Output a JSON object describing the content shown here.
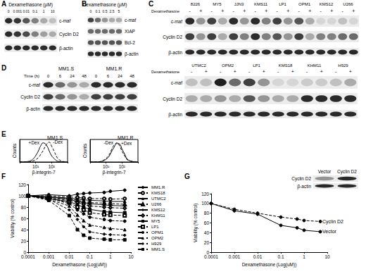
{
  "blots": {
    "A": {
      "panel_label": "A",
      "header": "Dexamethasone (μM)",
      "lanes": [
        "0",
        "0.001",
        "0.01",
        "0.1",
        "1",
        "10"
      ],
      "rows": [
        {
          "label": "c-maf",
          "bands": [
            0.9,
            0.85,
            0.7,
            0.5,
            0.3,
            0.2
          ]
        },
        {
          "label": "Cyclin D2",
          "bands": [
            0.9,
            0.85,
            0.75,
            0.5,
            0.35,
            0.3
          ]
        },
        {
          "label": "β-actin",
          "bands": [
            0.9,
            0.9,
            0.9,
            0.9,
            0.9,
            0.9
          ]
        }
      ]
    },
    "B": {
      "panel_label": "B",
      "header": "Dexamethasone (μM)",
      "lanes": [
        "0",
        "0.1",
        "0.5",
        "2.5",
        "5"
      ],
      "rows": [
        {
          "label": "c-maf",
          "bands": [
            0.8,
            0.6,
            0.4,
            0.3,
            0.3
          ]
        },
        {
          "label": "XIAP",
          "bands": [
            0.6,
            0.6,
            0.6,
            0.6,
            0.6
          ]
        },
        {
          "label": "Bcl-2",
          "bands": [
            0.7,
            0.7,
            0.7,
            0.7,
            0.7
          ]
        },
        {
          "label": "β-actin",
          "bands": [
            0.9,
            0.9,
            0.9,
            0.9,
            0.9
          ]
        }
      ]
    },
    "C": {
      "panel_label": "C",
      "treatment": "Dexamethasone",
      "signs": [
        "-",
        "+"
      ],
      "blocks": [
        {
          "lines": [
            "8226",
            "MY5",
            "JJN3",
            "KMS11",
            "LP1",
            "OPM1",
            "KMS12",
            "U266"
          ],
          "rows": [
            {
              "label": "c-maf",
              "bands": [
                0.9,
                0.4,
                0.8,
                0.3,
                0.9,
                0.4,
                0.9,
                0.5,
                0.8,
                0.4,
                0.7,
                0.3,
                0.1,
                0.1,
                0.2,
                0.1
              ]
            },
            {
              "label": "Cyclin D2",
              "bands": [
                0.8,
                0.4,
                0.8,
                0.3,
                0.8,
                0.5,
                0.9,
                0.5,
                0.7,
                0.4,
                0.8,
                0.3,
                0.5,
                0.5,
                0.6,
                0.6
              ]
            },
            {
              "label": "β-actin",
              "bands": [
                0.9,
                0.9,
                0.9,
                0.9,
                0.9,
                0.9,
                0.9,
                0.9,
                0.9,
                0.9,
                0.9,
                0.9,
                0.9,
                0.9,
                0.9,
                0.9
              ]
            }
          ]
        },
        {
          "lines": [
            "UTMC2",
            "OPM2",
            "LP1",
            "KMS18",
            "KHM11",
            "H929"
          ],
          "rows": [
            {
              "label": "c-maf",
              "bands": [
                0.2,
                0.2,
                0.95,
                0.6,
                0.8,
                0.4,
                0.1,
                0.1,
                0.15,
                0.15,
                0.2,
                0.3
              ]
            },
            {
              "label": "Cyclin D2",
              "bands": [
                0.3,
                0.3,
                0.4,
                0.3,
                0.7,
                0.4,
                0.3,
                0.3,
                0.9,
                0.9,
                0.9,
                0.9
              ]
            },
            {
              "label": "β-actin",
              "bands": [
                0.9,
                0.9,
                0.9,
                0.9,
                0.9,
                0.9,
                0.9,
                0.9,
                0.9,
                0.9,
                0.9,
                0.9
              ]
            }
          ]
        }
      ]
    },
    "D": {
      "panel_label": "D",
      "header": "Time (h)",
      "groups": [
        "MM1.S",
        "MM1.R"
      ],
      "lanes": [
        "0",
        "6",
        "24",
        "48"
      ],
      "rows": [
        {
          "label": "c-maf",
          "bands": [
            0.9,
            0.6,
            0.4,
            0.3,
            0.9,
            0.9,
            0.9,
            0.9
          ]
        },
        {
          "label": "Cyclin D2",
          "bands": [
            0.8,
            0.6,
            0.4,
            0.3,
            0.8,
            0.8,
            0.8,
            0.8
          ]
        },
        {
          "label": "β-actin",
          "bands": [
            0.9,
            0.9,
            0.9,
            0.9,
            0.9,
            0.9,
            0.9,
            0.9
          ]
        }
      ]
    },
    "G_inset": {
      "lanes": [
        "Vector",
        "Cyclin D2"
      ],
      "rows": [
        {
          "label": "Cyclin D2",
          "bands": [
            0.4,
            0.9
          ]
        },
        {
          "label": "β-actin",
          "bands": [
            0.9,
            0.9
          ]
        }
      ]
    }
  },
  "chart_data": [
    {
      "type": "line",
      "panel_label": "E",
      "title": "MM1.S",
      "xlabel": "β-integrin-7",
      "ylabel": "Counts",
      "log": "x",
      "xlim": [
        1,
        1000
      ],
      "xticks": [
        {
          "value": 10,
          "label": "10¹"
        },
        {
          "value": 100,
          "label": "10²"
        }
      ],
      "ylim": [
        0,
        100
      ],
      "tick_labels": "x",
      "grid": false,
      "x": [
        1,
        2,
        3,
        5,
        7,
        10,
        15,
        20,
        30,
        50,
        70,
        100,
        150,
        200,
        300,
        500,
        700,
        1000
      ],
      "series": [
        {
          "name": "+Dex",
          "color": "#000000",
          "line_style": "solid",
          "values": [
            0,
            0,
            2,
            6,
            14,
            28,
            50,
            70,
            85,
            72,
            50,
            28,
            14,
            6,
            2,
            1,
            0,
            0
          ]
        },
        {
          "name": "-Dex",
          "color": "#000000",
          "line_style": "dashed",
          "values": [
            0,
            0,
            0,
            2,
            5,
            10,
            20,
            32,
            52,
            80,
            88,
            70,
            45,
            25,
            10,
            3,
            1,
            0
          ]
        }
      ]
    },
    {
      "type": "line",
      "title": "MM1.R",
      "xlabel": "β-integrin-7",
      "ylabel": "Counts",
      "log": "x",
      "xlim": [
        1,
        1000
      ],
      "xticks": [
        {
          "value": 10,
          "label": "10¹"
        },
        {
          "value": 100,
          "label": "10²"
        }
      ],
      "ylim": [
        0,
        100
      ],
      "tick_labels": "x",
      "grid": false,
      "x": [
        1,
        2,
        3,
        5,
        7,
        10,
        15,
        20,
        30,
        50,
        70,
        100,
        150,
        200,
        300,
        500,
        700,
        1000
      ],
      "series": [
        {
          "name": "-Dex",
          "color": "#000000",
          "line_style": "dashed",
          "values": [
            0,
            0,
            1,
            3,
            8,
            16,
            30,
            48,
            72,
            85,
            72,
            48,
            26,
            12,
            5,
            2,
            0,
            0
          ]
        },
        {
          "name": "+Dex",
          "color": "#000000",
          "line_style": "solid",
          "values": [
            0,
            0,
            0,
            2,
            6,
            12,
            24,
            40,
            62,
            82,
            80,
            58,
            34,
            16,
            6,
            2,
            0,
            0
          ]
        }
      ]
    },
    {
      "type": "line",
      "panel_label": "F",
      "xlabel": "Dexamethasone (Log(uM))",
      "ylabel": "Viability (% control)",
      "log": "x",
      "xlim": [
        0.0001,
        10
      ],
      "xticks": [
        0.0001,
        0.001,
        0.01,
        0.1,
        1,
        10
      ],
      "ylim": [
        0,
        120
      ],
      "yticks": [
        0,
        20,
        40,
        60,
        80,
        100,
        120
      ],
      "grid": false,
      "legend": "right",
      "x": [
        0.0001,
        0.001,
        0.01,
        0.025,
        0.05,
        0.1,
        0.5,
        1,
        5
      ],
      "series": [
        {
          "name": "MM1.R",
          "color": "#000000",
          "marker": "circle",
          "line_style": "solid",
          "values": [
            100,
            102,
            100,
            103,
            104,
            105,
            106,
            108,
            110
          ]
        },
        {
          "name": "KMS18",
          "color": "#000000",
          "marker": "emptyCircle",
          "line_style": "dashed",
          "values": [
            100,
            100,
            98,
            97,
            96,
            95,
            95,
            94,
            95
          ]
        },
        {
          "name": "UTMC2",
          "color": "#000000",
          "marker": "triangle",
          "line_style": "solid",
          "values": [
            100,
            98,
            96,
            94,
            93,
            92,
            91,
            90,
            90
          ]
        },
        {
          "name": "U266",
          "color": "#000000",
          "marker": "emptyTriangle",
          "line_style": "dashed",
          "values": [
            100,
            97,
            95,
            92,
            90,
            88,
            87,
            86,
            85
          ]
        },
        {
          "name": "KMS12",
          "color": "#000000",
          "marker": "diamond",
          "line_style": "solid",
          "values": [
            100,
            98,
            94,
            90,
            88,
            86,
            84,
            83,
            82
          ]
        },
        {
          "name": "KHM11",
          "color": "#000000",
          "marker": "emptyDiamond",
          "line_style": "dashed",
          "values": [
            100,
            96,
            92,
            88,
            85,
            82,
            80,
            79,
            78
          ]
        },
        {
          "name": "MY5",
          "color": "#000000",
          "marker": "rect",
          "line_style": "solid",
          "values": [
            100,
            95,
            90,
            84,
            80,
            76,
            72,
            71,
            70
          ]
        },
        {
          "name": "LP1",
          "color": "#000000",
          "marker": "emptyRect",
          "line_style": "dashed",
          "values": [
            100,
            95,
            88,
            80,
            75,
            70,
            67,
            66,
            65
          ]
        },
        {
          "name": "OPM1",
          "color": "#000000",
          "marker": "circle",
          "line_style": "dashed",
          "values": [
            100,
            96,
            86,
            75,
            68,
            62,
            58,
            56,
            55
          ]
        },
        {
          "name": "OPM2",
          "color": "#000000",
          "marker": "triangle",
          "line_style": "dashed",
          "values": [
            100,
            94,
            82,
            66,
            56,
            48,
            44,
            42,
            40
          ]
        },
        {
          "name": "H929",
          "color": "#000000",
          "marker": "diamond",
          "line_style": "dashed",
          "values": [
            100,
            94,
            75,
            58,
            45,
            36,
            32,
            31,
            30
          ]
        },
        {
          "name": "MM1.S",
          "color": "#000000",
          "marker": "rect",
          "line_style": "dashed",
          "values": [
            100,
            92,
            65,
            40,
            30,
            25,
            23,
            22,
            22
          ]
        }
      ]
    },
    {
      "type": "line",
      "panel_label": "G",
      "xlabel": "Dexamethasone (Log(uM))",
      "ylabel": "Viability (% control)",
      "log": "x",
      "xlim": [
        0.0001,
        10
      ],
      "xticks": [
        0.0001,
        0.001,
        0.01,
        0.1,
        1,
        10
      ],
      "ylim": [
        0,
        120
      ],
      "yticks": [
        0,
        20,
        40,
        60,
        80,
        100,
        120
      ],
      "grid": false,
      "x": [
        0.0001,
        0.001,
        0.01,
        0.1,
        0.5,
        1,
        5
      ],
      "series": [
        {
          "name": "Cyclin D2",
          "color": "#000000",
          "marker": "circle",
          "line_style": "dashed",
          "values": [
            100,
            88,
            80,
            72,
            68,
            65,
            63
          ]
        },
        {
          "name": "Vector",
          "color": "#000000",
          "marker": "circle",
          "line_style": "solid",
          "values": [
            100,
            85,
            78,
            55,
            50,
            45,
            42
          ]
        }
      ]
    }
  ]
}
